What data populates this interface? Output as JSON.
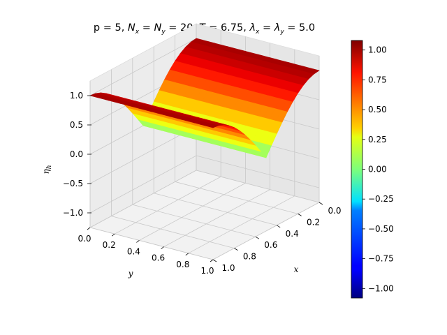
{
  "chart_data": {
    "type": "surface",
    "title": "p = 5, N_x = N_y = 20, T = 6.75, λ_x = λ_y = 5.0",
    "title_parts": {
      "p": "p = 5",
      "n": "N",
      "n_x": "x",
      "eq1": " = ",
      "n2": "N",
      "n_y": "y",
      "nval": " = 20",
      "t": "T = 6.75",
      "lam": "λ",
      "lam_x": "x",
      "eq2": " = ",
      "lam2": "λ",
      "lam_y": "y",
      "lamval": " = 5.0",
      "sep": ", "
    },
    "xlabel": "x",
    "ylabel": "y",
    "zlabel": "η_h",
    "zlabel_main": "η",
    "zlabel_sub": "h",
    "x_ticks": [
      "0.0",
      "0.2",
      "0.4",
      "0.6",
      "0.8",
      "1.0"
    ],
    "y_ticks": [
      "0.0",
      "0.2",
      "0.4",
      "0.6",
      "0.8",
      "1.0"
    ],
    "z_ticks": [
      "−1.0",
      "−0.5",
      "0.0",
      "0.5",
      "1.0"
    ],
    "xlim": [
      0,
      1
    ],
    "ylim": [
      0,
      1
    ],
    "zlim": [
      -1.25,
      1.25
    ],
    "colorbar": {
      "colormap": "jet",
      "range": [
        -1.08,
        1.08
      ],
      "ticks": [
        "−1.00",
        "−0.75",
        "−0.50",
        "−0.25",
        "0.00",
        "0.25",
        "0.50",
        "0.75",
        "1.00"
      ],
      "tick_values": [
        -1.0,
        -0.75,
        -0.5,
        -0.25,
        0.0,
        0.25,
        0.5,
        0.75,
        1.0
      ]
    },
    "surface": {
      "description": "eta = cos(pi*x) for x<0.5 and -cos(pi*x) for x>=0.5 (discontinuity at x=0.5), varying along x",
      "grid": 20
    },
    "grid": true
  }
}
